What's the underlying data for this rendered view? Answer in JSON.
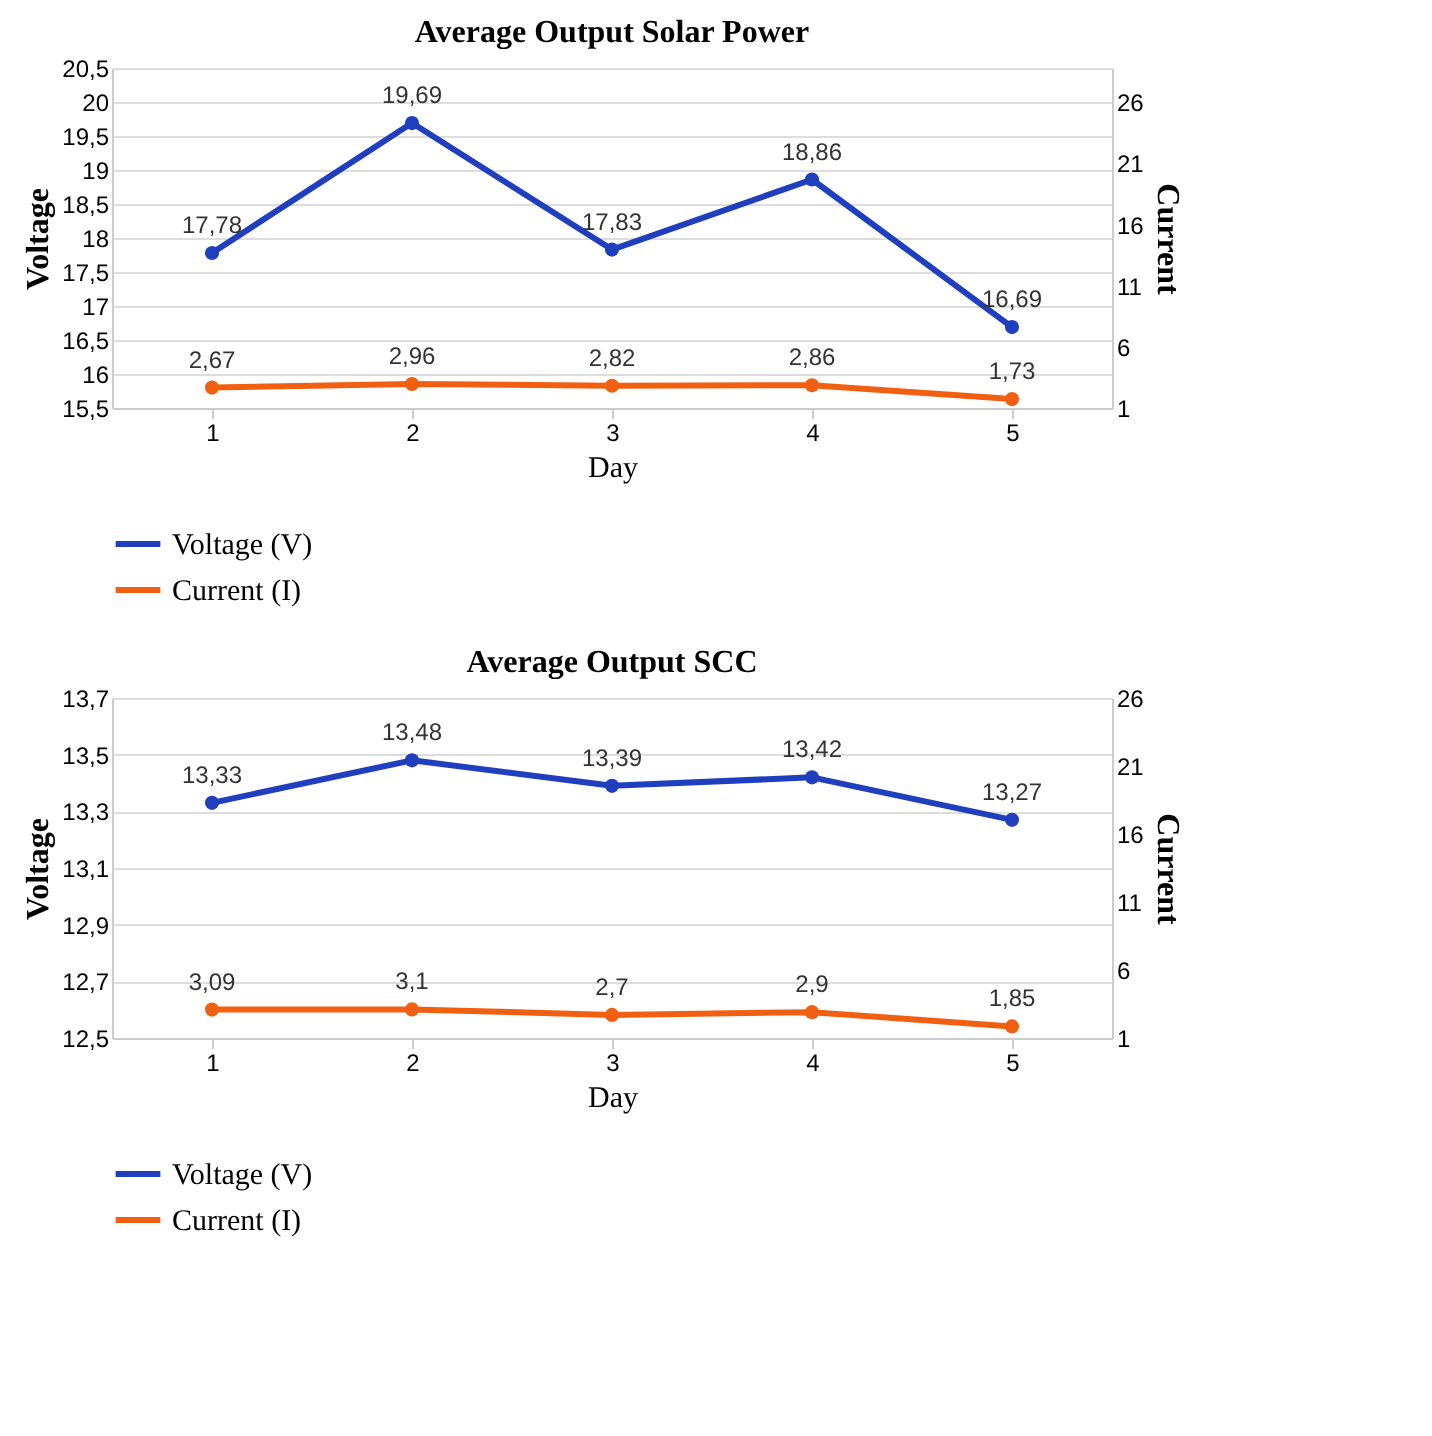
{
  "chart_data": [
    {
      "type": "line",
      "title": "Average Output Solar Power",
      "xlabel": "Day",
      "ylabel": "Voltage",
      "y2label": "Current",
      "categories": [
        "1",
        "2",
        "3",
        "4",
        "5"
      ],
      "series": [
        {
          "name": "Voltage (V)",
          "color": "#1f3fbf",
          "values": [
            17.78,
            19.69,
            17.83,
            18.86,
            16.69
          ],
          "value_labels": [
            "17,78",
            "19,69",
            "17,83",
            "18,86",
            "16,69"
          ]
        },
        {
          "name": "Current (I)",
          "color": "#f06010",
          "axis": "y2",
          "values": [
            2.67,
            2.96,
            2.82,
            2.86,
            1.73
          ],
          "value_labels": [
            "2,67",
            "2,96",
            "2,82",
            "2,86",
            "1,73"
          ]
        }
      ],
      "ylim": [
        15.5,
        20.5
      ],
      "yticks": [
        {
          "value": 15.5,
          "label": "15,5"
        },
        16,
        {
          "value": 16.5,
          "label": "16,5"
        },
        17,
        {
          "value": 17.5,
          "label": "17,5"
        },
        18,
        {
          "value": 18.5,
          "label": "18,5"
        },
        19,
        {
          "value": 19.5,
          "label": "19,5"
        },
        20,
        {
          "value": 20.5,
          "label": "20,5"
        }
      ],
      "y2lim": [
        1,
        28.8
      ],
      "y2ticks": [
        1,
        6,
        11,
        16,
        21,
        26
      ],
      "grid": "y",
      "legend": "bottom",
      "marker": "circle",
      "line_style": "solid"
    },
    {
      "type": "line",
      "title": "Average Output SCC",
      "xlabel": "Day",
      "ylabel": "Voltage",
      "y2label": "Current",
      "categories": [
        "1",
        "2",
        "3",
        "4",
        "5"
      ],
      "series": [
        {
          "name": "Voltage (V)",
          "color": "#1f3fbf",
          "values": [
            13.33,
            13.48,
            13.39,
            13.42,
            13.27
          ],
          "value_labels": [
            "13,33",
            "13,48",
            "13,39",
            "13,42",
            "13,27"
          ]
        },
        {
          "name": "Current (I)",
          "color": "#f06010",
          "axis": "y2",
          "values": [
            3.09,
            3.1,
            2.7,
            2.9,
            1.85
          ],
          "value_labels": [
            "3,09",
            "3,1",
            "2,7",
            "2,9",
            "1,85"
          ]
        }
      ],
      "ylim": [
        12.5,
        13.7
      ],
      "yticks": [
        {
          "value": 12.5,
          "label": "12,5"
        },
        {
          "value": 12.7,
          "label": "12,7"
        },
        {
          "value": 12.9,
          "label": "12,9"
        },
        {
          "value": 13.1,
          "label": "13,1"
        },
        {
          "value": 13.3,
          "label": "13,3"
        },
        {
          "value": 13.5,
          "label": "13,5"
        },
        {
          "value": 13.7,
          "label": "13,7"
        }
      ],
      "y2lim": [
        1,
        26
      ],
      "y2ticks": [
        1,
        6,
        11,
        16,
        21,
        26
      ],
      "grid": "y",
      "legend": "bottom",
      "marker": "circle",
      "line_style": "solid"
    }
  ]
}
